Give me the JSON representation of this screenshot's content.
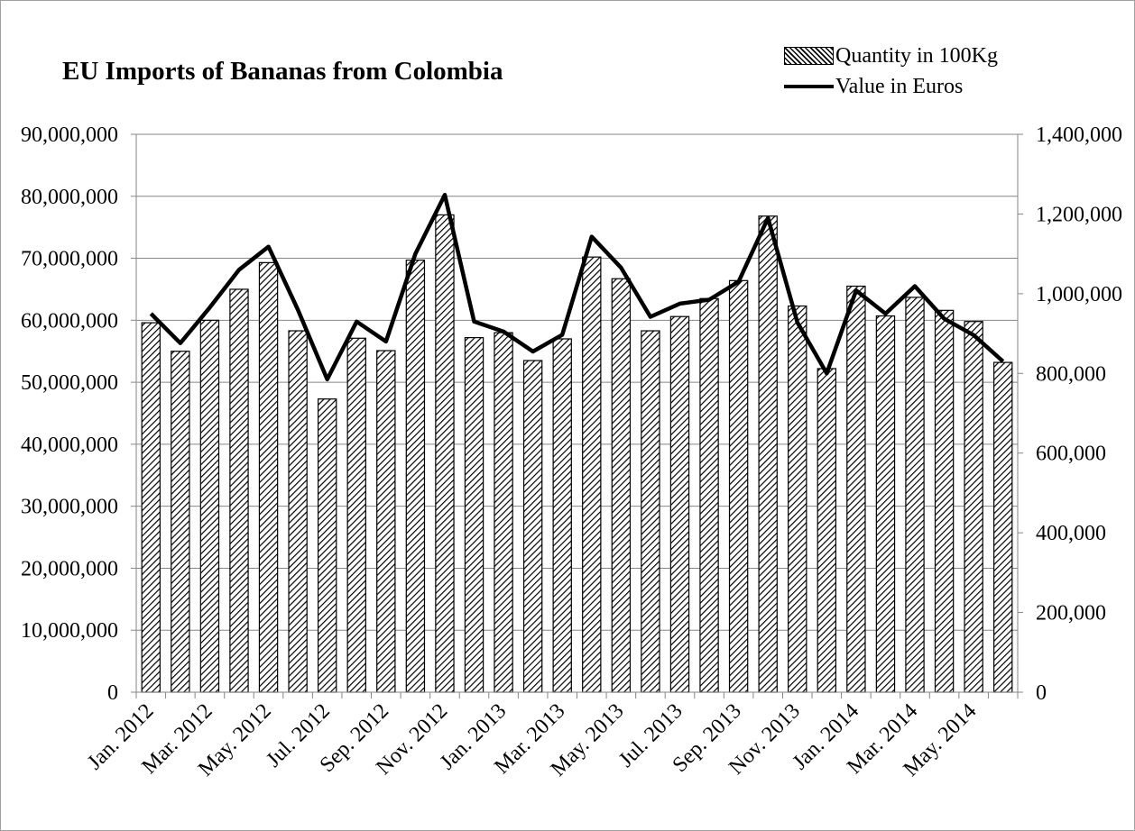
{
  "chart_data": {
    "type": "bar",
    "title": "EU Imports of Bananas from Colombia",
    "categories": [
      "Jan. 2012",
      "Feb. 2012",
      "Mar. 2012",
      "Apr. 2012",
      "May. 2012",
      "Jun. 2012",
      "Jul. 2012",
      "Aug. 2012",
      "Sep. 2012",
      "Oct. 2012",
      "Nov. 2012",
      "Dec. 2012",
      "Jan. 2013",
      "Feb. 2013",
      "Mar. 2013",
      "Apr. 2013",
      "May. 2013",
      "Jun. 2013",
      "Jul. 2013",
      "Aug. 2013",
      "Sep. 2013",
      "Oct. 2013",
      "Nov. 2013",
      "Dec. 2013",
      "Jan. 2014",
      "Feb. 2014",
      "Mar. 2014",
      "Apr. 2014",
      "May. 2014",
      "Jun. 2014"
    ],
    "tick_labels_shown": [
      "Jan. 2012",
      "",
      "Mar. 2012",
      "",
      "May. 2012",
      "",
      "Jul. 2012",
      "",
      "Sep. 2012",
      "",
      "Nov. 2012",
      "",
      "Jan. 2013",
      "",
      "Mar. 2013",
      "",
      "May. 2013",
      "",
      "Jul. 2013",
      "",
      "Sep. 2013",
      "",
      "Nov. 2013",
      "",
      "Jan. 2014",
      "",
      "Mar. 2014",
      "",
      "May. 2014",
      ""
    ],
    "series": [
      {
        "name": "Quantity in 100Kg",
        "type": "bar",
        "axis": "left",
        "values": [
          59600000,
          55000000,
          60000000,
          65000000,
          69300000,
          58300000,
          47300000,
          57100000,
          55100000,
          69700000,
          77000000,
          57200000,
          58000000,
          53500000,
          57000000,
          70200000,
          66700000,
          58300000,
          60600000,
          63500000,
          66400000,
          76800000,
          62300000,
          52200000,
          65500000,
          60700000,
          63700000,
          61600000,
          59800000,
          53200000
        ]
      },
      {
        "name": "Value in Euros",
        "type": "line",
        "axis": "right",
        "values": [
          950000,
          876000,
          965000,
          1060000,
          1118000,
          960000,
          785000,
          930000,
          880000,
          1100000,
          1248000,
          930000,
          905000,
          855000,
          897000,
          1143000,
          1065000,
          942000,
          975000,
          985000,
          1030000,
          1190000,
          928000,
          800000,
          1008000,
          950000,
          1019000,
          937000,
          896000,
          830000
        ]
      }
    ],
    "y_left": {
      "min": 0,
      "max": 90000000,
      "step": 10000000,
      "tick_labels": [
        "0",
        "10,000,000",
        "20,000,000",
        "30,000,000",
        "40,000,000",
        "50,000,000",
        "60,000,000",
        "70,000,000",
        "80,000,000",
        "90,000,000"
      ]
    },
    "y_right": {
      "min": 0,
      "max": 1400000,
      "step": 200000,
      "tick_labels": [
        "0",
        "200,000",
        "400,000",
        "600,000",
        "800,000",
        "1,000,000",
        "1,200,000",
        "1,400,000"
      ]
    },
    "grid": "horizontal",
    "legend_position": "top-right"
  }
}
